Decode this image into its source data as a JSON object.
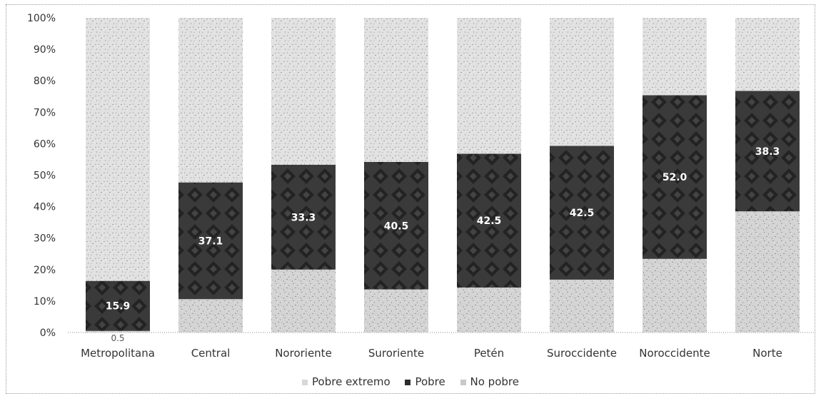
{
  "chart_data": {
    "type": "bar",
    "stacked": true,
    "percent_axis": true,
    "title": "",
    "categories": [
      "Metropolitana",
      "Central",
      "Nororiente",
      "Suroriente",
      "Petén",
      "Suroccidente",
      "Noroccidente",
      "Norte"
    ],
    "series": [
      {
        "name": "Pobre extremo",
        "color": "#d8d8d8",
        "values": [
          0.5,
          10.6,
          20.0,
          13.7,
          14.3,
          16.8,
          23.4,
          38.5
        ]
      },
      {
        "name": "Pobre",
        "color": "#2d2d2d",
        "values": [
          15.9,
          37.1,
          33.3,
          40.5,
          42.5,
          42.5,
          52.0,
          38.3
        ]
      },
      {
        "name": "No pobre",
        "color": "#c9c9c9",
        "values": [
          83.6,
          52.3,
          46.7,
          45.8,
          43.2,
          40.7,
          24.6,
          23.2
        ]
      }
    ],
    "data_labels": {
      "Pobre": [
        "15.9",
        "37.1",
        "33.3",
        "40.5",
        "42.5",
        "42.5",
        "52.0",
        "38.3"
      ],
      "Pobre extremo": [
        "0.5",
        "",
        "",
        "",
        "",
        "",
        "",
        ""
      ]
    },
    "y_ticks": [
      "0%",
      "10%",
      "20%",
      "30%",
      "40%",
      "50%",
      "60%",
      "70%",
      "80%",
      "90%",
      "100%"
    ],
    "ylim": [
      0,
      100
    ],
    "xlabel": "",
    "ylabel": "",
    "grid": false,
    "legend_position": "bottom"
  }
}
